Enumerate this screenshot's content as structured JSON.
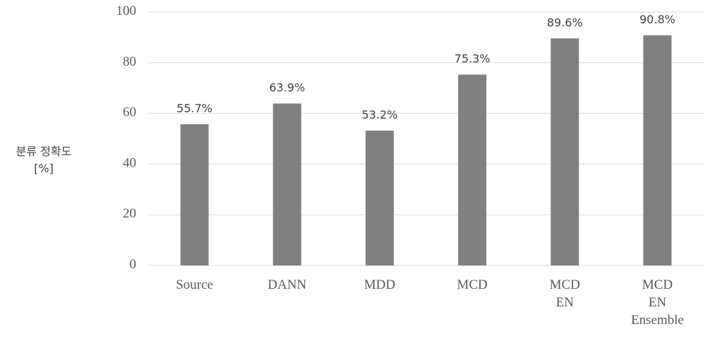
{
  "chart_data": {
    "type": "bar",
    "y_label": "분류 정확도\n[%]",
    "categories": [
      "Source",
      "DANN",
      "MDD",
      "MCD",
      "MCD\nEN",
      "MCD\nEN\nEnsemble"
    ],
    "values": [
      55.7,
      63.9,
      53.2,
      75.3,
      89.6,
      90.8
    ],
    "value_labels": [
      "55.7%",
      "63.9%",
      "53.2%",
      "75.3%",
      "89.6%",
      "90.8%"
    ],
    "color": "#808080",
    "ylim": [
      0,
      100
    ],
    "yticks": [
      0,
      20,
      40,
      60,
      80,
      100
    ],
    "grid": true
  }
}
